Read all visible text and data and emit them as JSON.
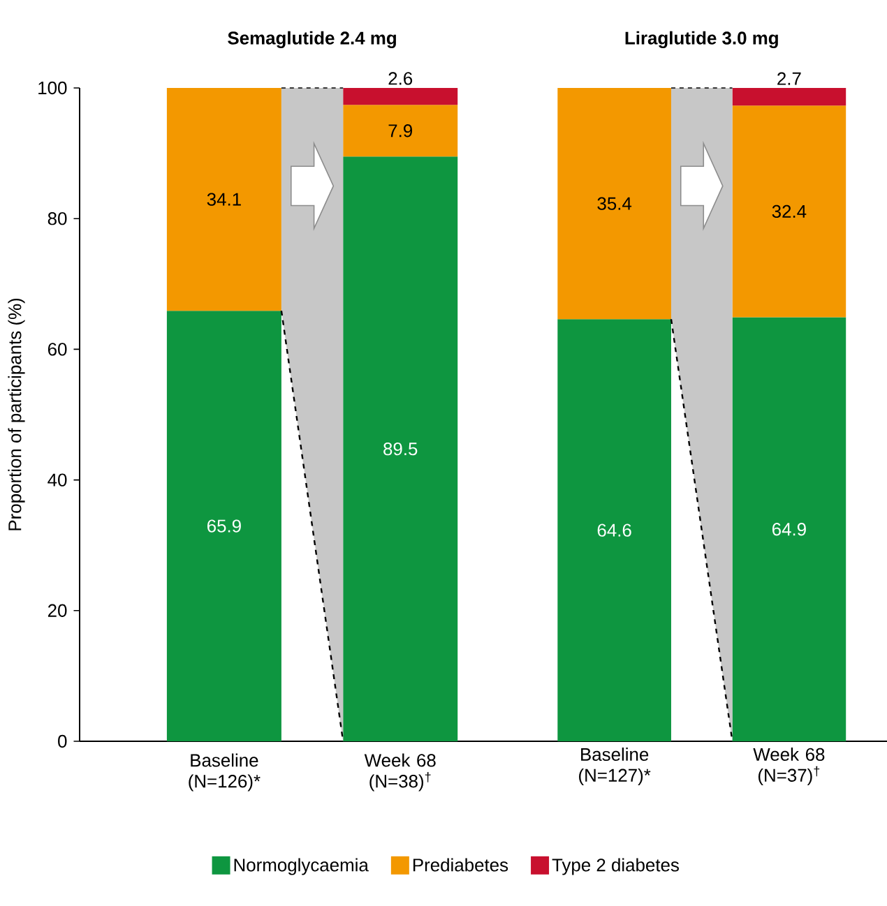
{
  "chart_data": [
    {
      "type": "bar",
      "stacked": true,
      "title": "Semaglutide 2.4 mg",
      "ylabel": "Proportion of participants (%)",
      "categories": [
        "Baseline (N=126)*",
        "Week 68 (N=38)$^{†}$"
      ],
      "series": [
        {
          "name": "Normoglycaemia",
          "color": "#0e9640",
          "values": [
            65.9,
            89.5
          ]
        },
        {
          "name": "Prediabetes",
          "color": "#f39800",
          "values": [
            34.1,
            7.9
          ]
        },
        {
          "name": "Type 2 diabetes",
          "color": "#c8102e",
          "values": [
            null,
            2.6
          ]
        }
      ],
      "ylim": [
        0,
        100
      ],
      "yticks": [
        0,
        20,
        40,
        60,
        80,
        100
      ],
      "data_labels": true,
      "legend": "bottom"
    },
    {
      "type": "bar",
      "stacked": true,
      "title": "Liraglutide 3.0 mg",
      "categories": [
        "Baseline (N=127)*",
        "Week 68 (N=37)$^{†}$"
      ],
      "series": [
        {
          "color": "#0e9640",
          "values": [
            64.6,
            64.9
          ]
        },
        {
          "color": "#f39800",
          "values": [
            35.4,
            32.4
          ]
        },
        {
          "color": "#c8102e",
          "values": [
            null,
            2.7
          ]
        }
      ],
      "ylim": [
        0,
        100
      ],
      "data_labels": true,
      "tick_labels": "x"
    }
  ]
}
